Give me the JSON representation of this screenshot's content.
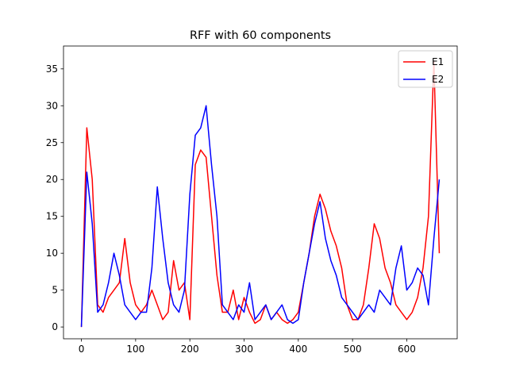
{
  "chart_data": {
    "type": "line",
    "title": "RFF with 60 components",
    "x": [
      0,
      10,
      20,
      30,
      40,
      50,
      60,
      70,
      80,
      90,
      100,
      110,
      120,
      130,
      140,
      150,
      160,
      170,
      180,
      190,
      200,
      210,
      220,
      230,
      240,
      250,
      260,
      270,
      280,
      290,
      300,
      310,
      320,
      330,
      340,
      350,
      360,
      370,
      380,
      390,
      400,
      410,
      420,
      430,
      440,
      450,
      460,
      470,
      480,
      490,
      500,
      510,
      520,
      530,
      540,
      550,
      560,
      570,
      580,
      590,
      600,
      610,
      620,
      630,
      640,
      650,
      660
    ],
    "series": [
      {
        "name": "E1",
        "color": "#ff0000",
        "values": [
          0,
          27,
          20,
          3,
          2,
          4,
          5,
          6,
          12,
          6,
          3,
          2,
          3,
          5,
          3,
          1,
          2,
          9,
          5,
          6,
          1,
          22,
          24,
          23,
          15,
          7,
          2,
          2,
          5,
          1,
          4,
          2,
          0.5,
          1,
          3,
          1,
          2,
          1,
          0.5,
          1,
          2,
          6,
          10,
          15,
          18,
          16,
          13,
          11,
          8,
          3,
          1,
          1,
          3,
          8,
          14,
          12,
          8,
          6,
          3,
          2,
          1,
          2,
          4,
          8,
          15,
          36,
          10
        ]
      },
      {
        "name": "E2",
        "color": "#0000ff",
        "values": [
          0,
          21,
          14,
          2,
          3,
          6,
          10,
          7,
          3,
          2,
          1,
          2,
          2,
          8,
          19,
          12,
          6,
          3,
          2,
          5,
          18,
          26,
          27,
          30,
          22,
          15,
          3,
          2,
          1,
          3,
          2,
          6,
          1,
          2,
          3,
          1,
          2,
          3,
          1,
          0.5,
          1,
          6,
          10,
          14,
          17,
          12,
          9,
          7,
          4,
          3,
          2,
          1,
          2,
          3,
          2,
          5,
          4,
          3,
          8,
          11,
          5,
          6,
          8,
          7,
          3,
          12,
          20
        ]
      }
    ],
    "xlim": [
      -33,
      693
    ],
    "ylim": [
      -1.6,
      38.1
    ],
    "xticks": [
      0,
      100,
      200,
      300,
      400,
      500,
      600
    ],
    "yticks": [
      0,
      5,
      10,
      15,
      20,
      25,
      30,
      35
    ],
    "legend": "upper right"
  }
}
